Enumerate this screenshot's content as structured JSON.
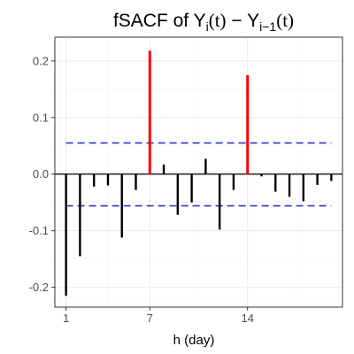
{
  "chart_data": {
    "type": "bar",
    "title": {
      "base": "fSACF of Y",
      "sub1": "i",
      "paren1": "(t)",
      "minus": " − Y",
      "sub2": "i−1",
      "paren2": "(t)"
    },
    "xlabel": "h (day)",
    "ylabel": "",
    "x": [
      1,
      2,
      3,
      4,
      5,
      6,
      7,
      8,
      9,
      10,
      11,
      12,
      13,
      14,
      15,
      16,
      17,
      18,
      19,
      20
    ],
    "values": [
      -0.215,
      -0.145,
      -0.022,
      -0.02,
      -0.112,
      -0.028,
      0.218,
      0.017,
      -0.072,
      -0.05,
      0.027,
      -0.098,
      -0.028,
      0.175,
      -0.004,
      -0.031,
      -0.04,
      -0.048,
      -0.019,
      -0.012
    ],
    "highlight_lags": [
      7,
      14
    ],
    "confidence_band": [
      -0.056,
      0.055
    ],
    "xlim": [
      0.2,
      20.8
    ],
    "ylim": [
      -0.235,
      0.242
    ],
    "xticks": [
      1,
      7,
      14
    ],
    "yticks": [
      -0.2,
      -0.1,
      0.0,
      0.1,
      0.2
    ],
    "ytick_labels": [
      "-0.2",
      "-0.1",
      "0.0",
      "0.1",
      "0.2"
    ],
    "grid": true,
    "colors": {
      "bar": "#000000",
      "highlight": "#ff0000",
      "band": "#3333cc",
      "grid_major": "#ebebeb",
      "grid_minor": "#f5f5f5",
      "panel_border": "#333333"
    }
  }
}
